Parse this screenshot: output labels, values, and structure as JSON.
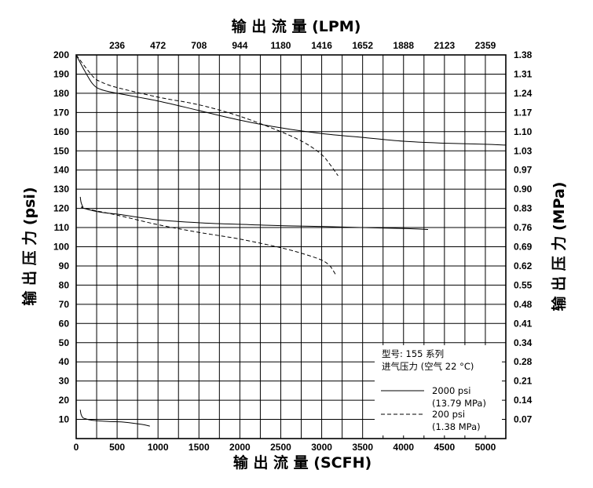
{
  "chart_data": {
    "type": "line",
    "title_top": "输 出 流 量 (LPM)",
    "title_bottom": "输 出 流 量 (SCFH)",
    "ylabel_left": "输 出 压 力 (psi)",
    "ylabel_right": "输 出 压 力 (MPa)",
    "xlim": [
      0,
      5250
    ],
    "ylim": [
      0,
      200
    ],
    "x_ticks": [
      0,
      500,
      1000,
      1500,
      2000,
      2500,
      3000,
      3500,
      4000,
      4500,
      5000
    ],
    "x_tick_labels": [
      "0",
      "500",
      "1000",
      "1500",
      "2000",
      "2500",
      "3000",
      "3500",
      "4000",
      "4500",
      "5000"
    ],
    "y_ticks": [
      10,
      20,
      30,
      40,
      50,
      60,
      70,
      80,
      90,
      100,
      110,
      120,
      130,
      140,
      150,
      160,
      170,
      180,
      190,
      200
    ],
    "y_tick_labels": [
      "10",
      "20",
      "30",
      "40",
      "50",
      "60",
      "70",
      "80",
      "90",
      "100",
      "110",
      "120",
      "130",
      "140",
      "150",
      "160",
      "170",
      "180",
      "190",
      "200"
    ],
    "top_tick_labels": [
      "236",
      "472",
      "708",
      "944",
      "1180",
      "1416",
      "1652",
      "1888",
      "2123",
      "2359"
    ],
    "right_tick_labels": [
      "0.07",
      "0.14",
      "0.21",
      "0.28",
      "0.34",
      "0.41",
      "0.48",
      "0.55",
      "0.62",
      "0.69",
      "0.76",
      "0.83",
      "0.90",
      "0.97",
      "1.03",
      "1.10",
      "1.17",
      "1.24",
      "1.31",
      "1.38"
    ],
    "grid": true,
    "legend": {
      "placement": "bottom-right",
      "line1": "型号: 155 系列",
      "line2": "进气压力 (空气 22 °C)",
      "entries": [
        {
          "style": "solid",
          "label": "2000 psi",
          "sublabel": "(13.79 MPa)"
        },
        {
          "style": "dashed",
          "label": "200 psi",
          "sublabel": "(1.38 MPa)"
        }
      ]
    },
    "series": [
      {
        "style": "solid",
        "x": [
          0,
          100,
          200,
          300,
          500,
          1000,
          1500,
          2000,
          2500,
          3000,
          3500,
          4000,
          4500,
          5000,
          5250
        ],
        "y": [
          200,
          192,
          185,
          182,
          180,
          176,
          171,
          166,
          162,
          159,
          157,
          155,
          154,
          153.4,
          153
        ]
      },
      {
        "style": "dashed",
        "x": [
          0,
          200,
          300,
          500,
          1000,
          1500,
          2000,
          2500,
          2800,
          3000,
          3100,
          3200
        ],
        "y": [
          200,
          189,
          186,
          183,
          178,
          174,
          168,
          160,
          154,
          148,
          143,
          137
        ]
      },
      {
        "style": "solid",
        "x": [
          50,
          60,
          80,
          100,
          300,
          500,
          1000,
          1500,
          2000,
          2500,
          3000,
          3500,
          4000,
          4300
        ],
        "y": [
          126,
          123,
          121,
          120,
          118,
          117,
          114,
          112.5,
          111.7,
          111,
          110.6,
          110,
          109.5,
          109
        ]
      },
      {
        "style": "dashed",
        "x": [
          80,
          100,
          500,
          1000,
          1500,
          2000,
          2500,
          2800,
          3000,
          3100,
          3170
        ],
        "y": [
          121,
          120,
          116.5,
          111.5,
          107.5,
          104,
          99.5,
          96,
          93,
          90,
          85.5
        ]
      },
      {
        "style": "solid",
        "x": [
          50,
          60,
          80,
          100,
          200,
          400,
          600,
          800,
          900
        ],
        "y": [
          15,
          12.5,
          11,
          10.5,
          9.5,
          8.9,
          8.5,
          7.4,
          6.5
        ]
      }
    ]
  }
}
